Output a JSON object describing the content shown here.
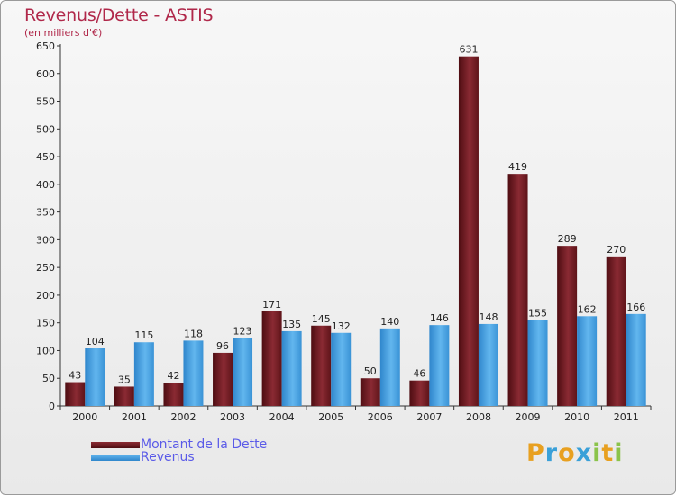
{
  "header": {
    "title": "Revenus/Dette - ASTIS",
    "subtitle": "(en milliers d'€)"
  },
  "chart_data": {
    "type": "bar",
    "title": "Revenus/Dette - ASTIS",
    "ylabel": "(en milliers d'€)",
    "xlabel": "",
    "categories": [
      "2000",
      "2001",
      "2002",
      "2003",
      "2004",
      "2005",
      "2006",
      "2007",
      "2008",
      "2009",
      "2010",
      "2011"
    ],
    "series": [
      {
        "name": "Montant de la Dette",
        "color": "#6b1a1f",
        "values": [
          43,
          35,
          42,
          96,
          171,
          145,
          50,
          46,
          631,
          419,
          289,
          270
        ]
      },
      {
        "name": "Revenus",
        "color": "#3b93d6",
        "values": [
          104,
          115,
          118,
          123,
          135,
          132,
          140,
          146,
          148,
          155,
          162,
          166
        ]
      }
    ],
    "ylim": [
      0,
      650
    ],
    "yticks": [
      0,
      50,
      100,
      150,
      200,
      250,
      300,
      350,
      400,
      450,
      500,
      550,
      600,
      650
    ],
    "grid": false,
    "legend_position": "bottom-left"
  },
  "legend": {
    "items": [
      {
        "label": "Montant de la Dette",
        "color": "#6b1a1f"
      },
      {
        "label": "Revenus",
        "color": "#3b93d6"
      }
    ]
  },
  "brand": {
    "letters": [
      "P",
      "r",
      "o",
      "x",
      "i",
      "t",
      "i"
    ],
    "colors": [
      "#e8a020",
      "#3aa0d8",
      "#e8a020",
      "#3aa0d8",
      "#8bc34a",
      "#e8a020",
      "#8bc34a"
    ]
  }
}
